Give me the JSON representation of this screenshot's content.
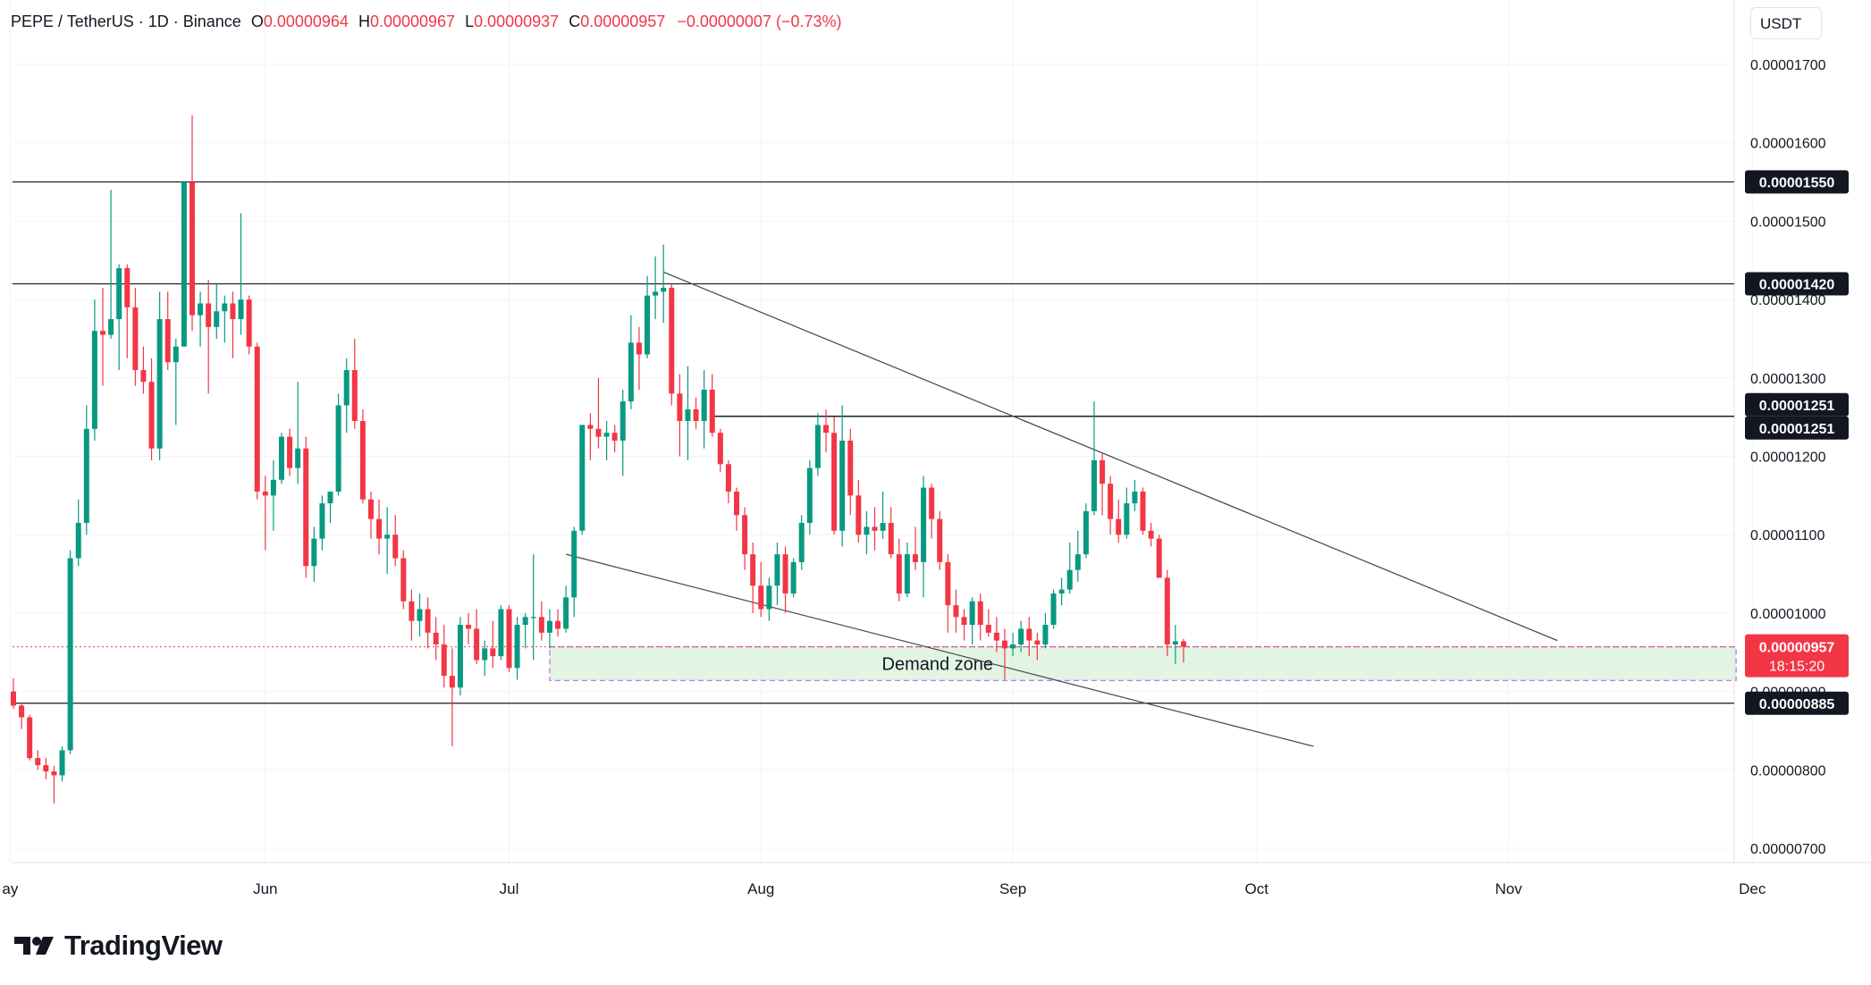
{
  "header": {
    "symbol": "PEPE / TetherUS · 1D · Binance",
    "open_label": "O",
    "open": "0.00000964",
    "high_label": "H",
    "high": "0.00000967",
    "low_label": "L",
    "low": "0.00000937",
    "close_label": "C",
    "close": "0.00000957",
    "change": "−0.00000007 (−0.73%)"
  },
  "currency_button": "USDT",
  "brand": {
    "name": "TradingView"
  },
  "colors": {
    "up": "#089981",
    "down": "#f23645",
    "grid": "#f0f3fa",
    "line": "#131722",
    "zone_fill": "#d8f0d8",
    "zone_border": "#b469e0"
  },
  "chart_data": {
    "type": "candlestick",
    "title": "PEPE / TetherUS · 1D · Binance",
    "ylabel": "USDT",
    "ylim": [
      6.6e-06,
      1.82e-05
    ],
    "y_ticks": [
      "0.00001700",
      "0.00001600",
      "0.00001500",
      "0.00001400",
      "0.00001300",
      "0.00001200",
      "0.00001100",
      "0.00001000",
      "0.00000900",
      "0.00000800",
      "0.00000700"
    ],
    "x_labels": [
      "ay",
      "Jun",
      "Jul",
      "Aug",
      "Sep",
      "Oct",
      "Nov",
      "Dec"
    ],
    "x_label_days": [
      -0.4,
      31,
      61,
      92,
      123,
      153,
      184,
      214
    ],
    "date_range": "May 1 – Sep 24 (daily)",
    "candles": [
      [
        0,
        9.0,
        9.17,
        8.78,
        8.82
      ],
      [
        1,
        8.82,
        8.86,
        8.52,
        8.67
      ],
      [
        2,
        8.67,
        8.7,
        8.12,
        8.15
      ],
      [
        3,
        8.15,
        8.25,
        8.0,
        8.06
      ],
      [
        4,
        8.06,
        8.15,
        7.88,
        7.98
      ],
      [
        5,
        7.98,
        8.05,
        7.57,
        7.93
      ],
      [
        6,
        7.93,
        8.3,
        7.85,
        8.25
      ],
      [
        7,
        8.25,
        10.8,
        8.2,
        10.7
      ],
      [
        8,
        10.7,
        11.45,
        10.6,
        11.15
      ],
      [
        9,
        11.15,
        12.65,
        11.0,
        12.35
      ],
      [
        10,
        12.35,
        14.0,
        12.2,
        13.6
      ],
      [
        11,
        13.6,
        14.15,
        12.9,
        13.55
      ],
      [
        12,
        13.55,
        15.4,
        13.5,
        13.75
      ],
      [
        13,
        13.75,
        14.45,
        13.1,
        14.4
      ],
      [
        14,
        14.4,
        14.45,
        13.25,
        13.9
      ],
      [
        15,
        13.9,
        14.15,
        12.9,
        13.1
      ],
      [
        16,
        13.1,
        13.4,
        12.8,
        12.95
      ],
      [
        17,
        12.95,
        13.25,
        11.95,
        12.1
      ],
      [
        18,
        12.1,
        14.1,
        11.95,
        13.75
      ],
      [
        19,
        13.75,
        14.1,
        13.1,
        13.2
      ],
      [
        20,
        13.2,
        13.5,
        12.4,
        13.4
      ],
      [
        21,
        13.4,
        15.5,
        13.4,
        15.5
      ],
      [
        22,
        15.5,
        16.35,
        13.6,
        13.8
      ],
      [
        23,
        13.8,
        14.1,
        13.4,
        13.95
      ],
      [
        24,
        13.95,
        14.25,
        12.8,
        13.65
      ],
      [
        25,
        13.65,
        14.2,
        13.5,
        13.85
      ],
      [
        26,
        13.85,
        14.05,
        13.45,
        13.95
      ],
      [
        27,
        13.95,
        14.1,
        13.25,
        13.75
      ],
      [
        28,
        13.75,
        15.1,
        13.55,
        14.0
      ],
      [
        29,
        14.0,
        14.05,
        13.3,
        13.4
      ],
      [
        30,
        13.4,
        13.45,
        11.45,
        11.55
      ],
      [
        31,
        11.55,
        11.75,
        10.8,
        11.5
      ],
      [
        32,
        11.5,
        11.95,
        11.05,
        11.7
      ],
      [
        33,
        11.7,
        12.3,
        11.65,
        12.25
      ],
      [
        34,
        12.25,
        12.35,
        11.75,
        11.85
      ],
      [
        35,
        11.85,
        12.95,
        11.65,
        12.1
      ],
      [
        36,
        12.1,
        12.25,
        10.45,
        10.6
      ],
      [
        37,
        10.6,
        11.1,
        10.4,
        10.95
      ],
      [
        38,
        10.95,
        11.5,
        10.8,
        11.4
      ],
      [
        39,
        11.4,
        11.55,
        11.15,
        11.55
      ],
      [
        40,
        11.55,
        12.8,
        11.5,
        12.65
      ],
      [
        41,
        12.65,
        13.25,
        12.3,
        13.1
      ],
      [
        42,
        13.1,
        13.5,
        12.35,
        12.45
      ],
      [
        43,
        12.45,
        12.6,
        11.4,
        11.45
      ],
      [
        44,
        11.45,
        11.55,
        10.95,
        11.2
      ],
      [
        45,
        11.2,
        11.45,
        10.75,
        10.95
      ],
      [
        46,
        10.95,
        11.35,
        10.5,
        11.0
      ],
      [
        47,
        11.0,
        11.25,
        10.6,
        10.7
      ],
      [
        48,
        10.7,
        10.8,
        10.05,
        10.15
      ],
      [
        49,
        10.15,
        10.3,
        9.65,
        9.9
      ],
      [
        50,
        9.9,
        10.25,
        9.7,
        10.05
      ],
      [
        51,
        10.05,
        10.2,
        9.55,
        9.75
      ],
      [
        52,
        9.75,
        9.95,
        9.4,
        9.6
      ],
      [
        53,
        9.6,
        9.85,
        9.05,
        9.2
      ],
      [
        54,
        9.2,
        9.55,
        8.3,
        9.05
      ],
      [
        55,
        9.05,
        9.95,
        8.95,
        9.85
      ],
      [
        56,
        9.85,
        10.0,
        9.6,
        9.8
      ],
      [
        57,
        9.8,
        10.05,
        9.35,
        9.4
      ],
      [
        58,
        9.4,
        9.65,
        9.2,
        9.55
      ],
      [
        59,
        9.55,
        9.9,
        9.3,
        9.45
      ],
      [
        60,
        9.45,
        10.1,
        9.4,
        10.05
      ],
      [
        61,
        10.05,
        10.1,
        9.25,
        9.3
      ],
      [
        62,
        9.3,
        9.95,
        9.15,
        9.85
      ],
      [
        63,
        9.85,
        10.0,
        9.55,
        9.95
      ],
      [
        64,
        9.95,
        10.75,
        9.4,
        9.95
      ],
      [
        65,
        9.95,
        10.15,
        9.65,
        9.75
      ],
      [
        66,
        9.75,
        10.05,
        9.55,
        9.9
      ],
      [
        67,
        9.9,
        10.05,
        9.7,
        9.8
      ],
      [
        68,
        9.8,
        10.35,
        9.75,
        10.2
      ],
      [
        69,
        10.2,
        11.1,
        9.95,
        11.05
      ],
      [
        70,
        11.05,
        12.4,
        11.0,
        12.4
      ],
      [
        71,
        12.4,
        12.55,
        11.95,
        12.35
      ],
      [
        72,
        12.35,
        13.0,
        12.1,
        12.25
      ],
      [
        73,
        12.25,
        12.45,
        11.95,
        12.3
      ],
      [
        74,
        12.3,
        12.4,
        12.05,
        12.2
      ],
      [
        75,
        12.2,
        12.85,
        11.75,
        12.7
      ],
      [
        76,
        12.7,
        13.8,
        12.6,
        13.45
      ],
      [
        77,
        13.45,
        13.65,
        12.85,
        13.3
      ],
      [
        78,
        13.3,
        14.3,
        13.25,
        14.05
      ],
      [
        79,
        14.05,
        14.55,
        13.75,
        14.1
      ],
      [
        80,
        14.1,
        14.7,
        13.7,
        14.15
      ],
      [
        81,
        14.15,
        14.2,
        12.65,
        12.8
      ],
      [
        82,
        12.8,
        13.05,
        12.0,
        12.45
      ],
      [
        83,
        12.45,
        13.15,
        11.95,
        12.6
      ],
      [
        84,
        12.6,
        12.75,
        12.35,
        12.45
      ],
      [
        85,
        12.45,
        13.1,
        12.1,
        12.85
      ],
      [
        86,
        12.85,
        13.05,
        12.25,
        12.3
      ],
      [
        87,
        12.3,
        12.35,
        11.8,
        11.9
      ],
      [
        88,
        11.9,
        11.95,
        11.4,
        11.55
      ],
      [
        89,
        11.55,
        11.6,
        11.05,
        11.25
      ],
      [
        90,
        11.25,
        11.35,
        10.55,
        10.75
      ],
      [
        91,
        10.75,
        10.9,
        10.0,
        10.35
      ],
      [
        92,
        10.35,
        10.65,
        9.95,
        10.05
      ],
      [
        93,
        10.05,
        10.45,
        9.9,
        10.35
      ],
      [
        94,
        10.35,
        10.9,
        10.1,
        10.75
      ],
      [
        95,
        10.75,
        10.85,
        10.0,
        10.25
      ],
      [
        96,
        10.25,
        10.7,
        10.2,
        10.65
      ],
      [
        97,
        10.65,
        11.25,
        10.55,
        11.15
      ],
      [
        98,
        11.15,
        11.95,
        11.0,
        11.85
      ],
      [
        99,
        11.85,
        12.55,
        11.75,
        12.4
      ],
      [
        100,
        12.4,
        12.6,
        12.05,
        12.3
      ],
      [
        101,
        12.3,
        12.5,
        11.0,
        11.05
      ],
      [
        102,
        11.05,
        12.65,
        10.85,
        12.2
      ],
      [
        103,
        12.2,
        12.35,
        11.25,
        11.5
      ],
      [
        104,
        11.5,
        11.7,
        10.9,
        11.0
      ],
      [
        105,
        11.0,
        11.3,
        10.75,
        11.1
      ],
      [
        106,
        11.1,
        11.35,
        10.8,
        11.05
      ],
      [
        107,
        11.05,
        11.55,
        10.95,
        11.15
      ],
      [
        108,
        11.15,
        11.35,
        10.7,
        10.75
      ],
      [
        109,
        10.75,
        10.95,
        10.15,
        10.25
      ],
      [
        110,
        10.25,
        10.9,
        10.2,
        10.75
      ],
      [
        111,
        10.75,
        11.1,
        10.55,
        10.65
      ],
      [
        112,
        10.65,
        11.75,
        10.2,
        11.6
      ],
      [
        113,
        11.6,
        11.65,
        10.95,
        11.2
      ],
      [
        114,
        11.2,
        11.3,
        10.55,
        10.65
      ],
      [
        115,
        10.65,
        10.75,
        9.75,
        10.1
      ],
      [
        116,
        10.1,
        10.3,
        9.75,
        9.95
      ],
      [
        117,
        9.95,
        10.05,
        9.65,
        9.85
      ],
      [
        118,
        9.85,
        10.2,
        9.6,
        10.15
      ],
      [
        119,
        10.15,
        10.25,
        9.65,
        9.85
      ],
      [
        120,
        9.85,
        10.05,
        9.7,
        9.75
      ],
      [
        121,
        9.75,
        9.95,
        9.5,
        9.65
      ],
      [
        122,
        9.65,
        9.8,
        9.15,
        9.55
      ],
      [
        123,
        9.55,
        9.75,
        9.45,
        9.6
      ],
      [
        124,
        9.6,
        9.9,
        9.5,
        9.8
      ],
      [
        125,
        9.8,
        9.95,
        9.45,
        9.65
      ],
      [
        126,
        9.65,
        9.75,
        9.4,
        9.6
      ],
      [
        127,
        9.6,
        10.0,
        9.55,
        9.85
      ],
      [
        128,
        9.85,
        10.3,
        9.8,
        10.25
      ],
      [
        129,
        10.25,
        10.45,
        10.1,
        10.3
      ],
      [
        130,
        10.3,
        10.9,
        10.25,
        10.55
      ],
      [
        131,
        10.55,
        11.05,
        10.4,
        10.75
      ],
      [
        132,
        10.75,
        11.4,
        10.7,
        11.3
      ],
      [
        133,
        11.3,
        12.7,
        11.25,
        11.95
      ],
      [
        134,
        11.95,
        12.05,
        11.25,
        11.65
      ],
      [
        135,
        11.65,
        11.75,
        11.0,
        11.2
      ],
      [
        136,
        11.2,
        11.45,
        10.9,
        11.0
      ],
      [
        137,
        11.0,
        11.6,
        10.95,
        11.4
      ],
      [
        138,
        11.4,
        11.7,
        11.3,
        11.55
      ],
      [
        139,
        11.55,
        11.6,
        11.0,
        11.05
      ],
      [
        140,
        11.05,
        11.15,
        10.85,
        10.95
      ],
      [
        141,
        10.95,
        11.0,
        10.45,
        10.45
      ],
      [
        142,
        10.45,
        10.55,
        9.45,
        9.6
      ],
      [
        143,
        9.6,
        9.85,
        9.35,
        9.64
      ],
      [
        144,
        9.64,
        9.67,
        9.37,
        9.57
      ]
    ],
    "horizontal_levels": [
      "0.00001550",
      "0.00001420",
      "0.00001251",
      "0.00001251",
      "0.00000885"
    ],
    "level_values": [
      15.5,
      14.2,
      12.51,
      12.51,
      8.85
    ],
    "current_price": "0.00000957",
    "current_price_value": 9.57,
    "countdown": "18:15:20",
    "annotation": "Demand zone",
    "demand_zone_range": [
      9.14,
      9.57
    ],
    "demand_zone_days": [
      66,
      212
    ],
    "trendline_upper": {
      "from": {
        "day": 80,
        "price": 14.35
      },
      "to": {
        "day": 190,
        "price": 9.65
      }
    },
    "trendline_lower": {
      "from": {
        "day": 68,
        "price": 10.75
      },
      "to": {
        "day": 160,
        "price": 8.3
      }
    },
    "trendline_resistance_start_day": 86,
    "x_label_partial_note": "first label is cut off at left edge"
  }
}
